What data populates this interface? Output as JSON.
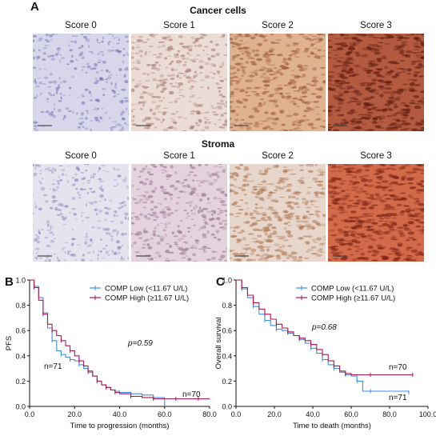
{
  "figure": {
    "panel_a": {
      "letter": "A",
      "rows": [
        {
          "title": "Cancer cells",
          "tiles": [
            {
              "label": "Score 0",
              "colors": {
                "bg": "#d7d6ea",
                "mark": "#7c79b5"
              },
              "stain_level": 0
            },
            {
              "label": "Score 1",
              "colors": {
                "bg": "#ecdcd6",
                "mark": "#a97f78"
              },
              "stain_level": 1
            },
            {
              "label": "Score 2",
              "colors": {
                "bg": "#e0b290",
                "mark": "#9b5a3c"
              },
              "stain_level": 2
            },
            {
              "label": "Score 3",
              "colors": {
                "bg": "#b45a40",
                "mark": "#5e1c10"
              },
              "stain_level": 3
            }
          ]
        },
        {
          "title": "Stroma",
          "tiles": [
            {
              "label": "Score 0",
              "colors": {
                "bg": "#e6e3ee",
                "mark": "#8a86bb"
              },
              "stain_level": 0
            },
            {
              "label": "Score 1",
              "colors": {
                "bg": "#e4d2dc",
                "mark": "#9a7a94"
              },
              "stain_level": 1
            },
            {
              "label": "Score 2",
              "colors": {
                "bg": "#e7d6cc",
                "mark": "#b27a55"
              },
              "stain_level": 2
            },
            {
              "label": "Score 3",
              "colors": {
                "bg": "#d36b4b",
                "mark": "#7a2212"
              },
              "stain_level": 3
            }
          ]
        }
      ]
    },
    "legend": {
      "low": "COMP Low (<11.67 U/L)",
      "high": "COMP High (≥11.67 U/L)",
      "colors": {
        "low": "#3a8fe8",
        "high": "#b3164a"
      }
    }
  },
  "chart_data": [
    {
      "panel": "B",
      "type": "line",
      "xlabel": "Time to progression  (months)",
      "ylabel": "PFS",
      "xlim": [
        0,
        80
      ],
      "ylim": [
        0,
        1.0
      ],
      "xticks": [
        "0.0",
        "20.0",
        "40.0",
        "60.0",
        "80.0"
      ],
      "yticks": [
        "0.0",
        "0.2",
        "0.4",
        "0.6",
        "0.8",
        "1.0"
      ],
      "annotation": "p=0.59",
      "series": [
        {
          "name": "COMP Low (<11.67 U/L)",
          "n_label": "n=71",
          "x": [
            0,
            2,
            4,
            6,
            8,
            10,
            12,
            14,
            16,
            18,
            20,
            22,
            24,
            26,
            28,
            30,
            32,
            34,
            36,
            38,
            40,
            45,
            50,
            55,
            60
          ],
          "y": [
            1.0,
            0.95,
            0.86,
            0.74,
            0.62,
            0.52,
            0.44,
            0.41,
            0.39,
            0.37,
            0.36,
            0.33,
            0.3,
            0.27,
            0.24,
            0.2,
            0.17,
            0.15,
            0.13,
            0.12,
            0.11,
            0.1,
            0.09,
            0.07,
            0.0
          ]
        },
        {
          "name": "COMP High (≥11.67 U/L)",
          "n_label": "n=70",
          "x": [
            0,
            2,
            4,
            6,
            8,
            10,
            12,
            14,
            16,
            18,
            20,
            22,
            24,
            26,
            28,
            30,
            32,
            34,
            36,
            38,
            40,
            45,
            50,
            55,
            60,
            65,
            70,
            75,
            80
          ],
          "y": [
            1.0,
            0.94,
            0.84,
            0.73,
            0.65,
            0.6,
            0.56,
            0.52,
            0.48,
            0.44,
            0.4,
            0.36,
            0.32,
            0.28,
            0.24,
            0.2,
            0.17,
            0.15,
            0.13,
            0.11,
            0.1,
            0.08,
            0.07,
            0.06,
            0.06,
            0.06,
            0.06,
            0.06,
            0.06
          ]
        }
      ]
    },
    {
      "panel": "C",
      "type": "line",
      "xlabel": "Time to death (months)",
      "ylabel": "Overall survival",
      "xlim": [
        0,
        100
      ],
      "ylim": [
        0,
        1.0
      ],
      "xticks": [
        "0.0",
        "20.0",
        "40.0",
        "60.0",
        "80.0",
        "100.0"
      ],
      "yticks": [
        "0.0",
        "0.2",
        "0.4",
        "0.6",
        "0.8",
        "1.0"
      ],
      "annotation": "p=0.68",
      "series": [
        {
          "name": "COMP Low (<11.67 U/L)",
          "n_label": "n=71",
          "x": [
            0,
            3,
            6,
            9,
            12,
            15,
            18,
            21,
            24,
            27,
            30,
            33,
            36,
            39,
            42,
            45,
            48,
            51,
            54,
            57,
            60,
            63,
            66,
            70,
            80,
            90
          ],
          "y": [
            1.0,
            0.93,
            0.86,
            0.79,
            0.73,
            0.68,
            0.64,
            0.61,
            0.6,
            0.58,
            0.56,
            0.53,
            0.5,
            0.46,
            0.42,
            0.37,
            0.33,
            0.3,
            0.27,
            0.25,
            0.24,
            0.2,
            0.12,
            0.12,
            0.12,
            0.11
          ]
        },
        {
          "name": "COMP High (≥11.67 U/L)",
          "n_label": "n=70",
          "x": [
            0,
            3,
            6,
            9,
            12,
            15,
            18,
            21,
            24,
            27,
            30,
            33,
            36,
            39,
            42,
            45,
            48,
            51,
            54,
            57,
            60,
            70,
            80,
            92
          ],
          "y": [
            1.0,
            0.94,
            0.88,
            0.82,
            0.77,
            0.73,
            0.69,
            0.65,
            0.62,
            0.59,
            0.56,
            0.54,
            0.52,
            0.49,
            0.45,
            0.41,
            0.36,
            0.32,
            0.28,
            0.26,
            0.25,
            0.25,
            0.25,
            0.25
          ]
        }
      ]
    }
  ]
}
